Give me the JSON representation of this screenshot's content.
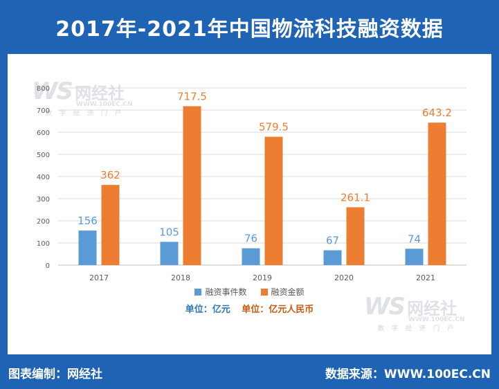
{
  "header": {
    "title": "2017年-2021年中国物流科技融资数据"
  },
  "footer": {
    "left": "图表编制：网经社",
    "right": "数据来源：WWW.100EC.CN"
  },
  "watermark": {
    "logo": "WS",
    "name": "网经社",
    "url": "WWW.100EC.CN",
    "sub": "数字经济门户"
  },
  "units": {
    "left": "单位：亿元",
    "right": "单位：亿元人民币"
  },
  "colors": {
    "series1": "#5b9bd5",
    "series2": "#ed7d31",
    "header": "#1f63b4",
    "unitLeft": "#2e75b6",
    "unitRight": "#c55a11"
  },
  "chart_data": {
    "type": "bar",
    "categories": [
      "2017",
      "2018",
      "2019",
      "2020",
      "2021"
    ],
    "series": [
      {
        "name": "融资事件数",
        "values": [
          156,
          105,
          76,
          67,
          74
        ]
      },
      {
        "name": "融资金额",
        "values": [
          362,
          717.5,
          579.5,
          261.1,
          643.2
        ]
      }
    ],
    "data_labels": [
      [
        "156",
        "105",
        "76",
        "67",
        "74"
      ],
      [
        "362",
        "717.5",
        "579.5",
        "261.1",
        "643.2"
      ]
    ],
    "ylim": [
      0,
      800
    ],
    "yticks": [
      0,
      100,
      200,
      300,
      400,
      500,
      600,
      700,
      800
    ],
    "grid": true,
    "legend_position": "bottom"
  }
}
